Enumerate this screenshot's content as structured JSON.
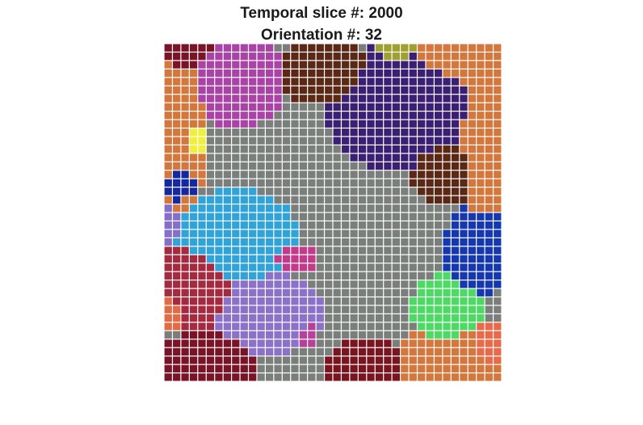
{
  "figure": {
    "title_line_1": "Temporal slice #: 2000",
    "title_line_2": "Orientation #: 32"
  },
  "grid": {
    "rows": 40,
    "cols": 40,
    "background_color": "#7a7f7c",
    "cell_border_color": "#ffffff",
    "regions": [
      {
        "name": "maroon",
        "color": "#7b1327",
        "x": 2.5,
        "y": 1.0,
        "rx": 4.0,
        "ry": 2.5
      },
      {
        "name": "purple-magenta",
        "color": "#a943a6",
        "x": 8.5,
        "y": 4.5,
        "rx": 6.0,
        "ry": 5.5
      },
      {
        "name": "orange-top-left",
        "color": "#d4773d",
        "x": 1.0,
        "y": 10.0,
        "rx": 4.5,
        "ry": 10.5
      },
      {
        "name": "brown-top",
        "color": "#5a2814",
        "x": 19.0,
        "y": 3.5,
        "rx": 6.0,
        "ry": 4.0
      },
      {
        "name": "olive",
        "color": "#a0a030",
        "x": 27.5,
        "y": 0.5,
        "rx": 2.5,
        "ry": 2.0
      },
      {
        "name": "orange-top-right",
        "color": "#d4773d",
        "x": 35.5,
        "y": 1.0,
        "rx": 7.5,
        "ry": 5.0
      },
      {
        "name": "orange-right",
        "color": "#d4773d",
        "x": 38.0,
        "y": 11.5,
        "rx": 4.0,
        "ry": 10.0
      },
      {
        "name": "indigo",
        "color": "#3b1f72",
        "x": 29.0,
        "y": 7.5,
        "rx": 10.0,
        "ry": 8.0
      },
      {
        "name": "brown-right",
        "color": "#5a2814",
        "x": 33.5,
        "y": 15.0,
        "rx": 4.5,
        "ry": 4.5
      },
      {
        "name": "yellow",
        "color": "#f0f03a",
        "x": 3.5,
        "y": 11.5,
        "rx": 2.0,
        "ry": 2.2
      },
      {
        "name": "blue-left",
        "color": "#1428a0",
        "x": 1.5,
        "y": 16.5,
        "rx": 2.8,
        "ry": 2.5
      },
      {
        "name": "cyan",
        "color": "#30a3d8",
        "x": 8.5,
        "y": 23.0,
        "rx": 7.5,
        "ry": 6.0
      },
      {
        "name": "lavender-left",
        "color": "#8470c8",
        "x": 0.5,
        "y": 21.5,
        "rx": 2.0,
        "ry": 2.5
      },
      {
        "name": "crimson",
        "color": "#a52a40",
        "x": 3.5,
        "y": 29.0,
        "rx": 5.5,
        "ry": 5.5
      },
      {
        "name": "violet",
        "color": "#8b71c8",
        "x": 12.0,
        "y": 32.0,
        "rx": 7.0,
        "ry": 5.0
      },
      {
        "name": "magenta-center",
        "color": "#c33a8a",
        "x": 15.5,
        "y": 25.5,
        "rx": 2.6,
        "ry": 2.0
      },
      {
        "name": "blue-right",
        "color": "#1538b0",
        "x": 37.0,
        "y": 24.5,
        "rx": 4.0,
        "ry": 5.5
      },
      {
        "name": "green",
        "color": "#4cd964",
        "x": 33.5,
        "y": 31.5,
        "rx": 4.5,
        "ry": 4.2
      },
      {
        "name": "orange-bottom-right",
        "color": "#d4773d",
        "x": 34.5,
        "y": 38.5,
        "rx": 8.5,
        "ry": 5.0
      },
      {
        "name": "salmon",
        "color": "#e86a4a",
        "x": 39.0,
        "y": 36.0,
        "rx": 3.0,
        "ry": 3.5
      },
      {
        "name": "orange-bottom-left",
        "color": "#e26a45",
        "x": 0.5,
        "y": 32.0,
        "rx": 2.0,
        "ry": 2.5
      },
      {
        "name": "dark-red-bottom",
        "color": "#7a1520",
        "x": 24.0,
        "y": 38.5,
        "rx": 5.0,
        "ry": 3.5
      },
      {
        "name": "maroon-bottom-left",
        "color": "#7b1327",
        "x": 5.0,
        "y": 38.0,
        "rx": 6.0,
        "ry": 4.0
      },
      {
        "name": "pink-bottom",
        "color": "#b7409b",
        "x": 17.0,
        "y": 34.5,
        "rx": 1.5,
        "ry": 1.5
      }
    ]
  }
}
